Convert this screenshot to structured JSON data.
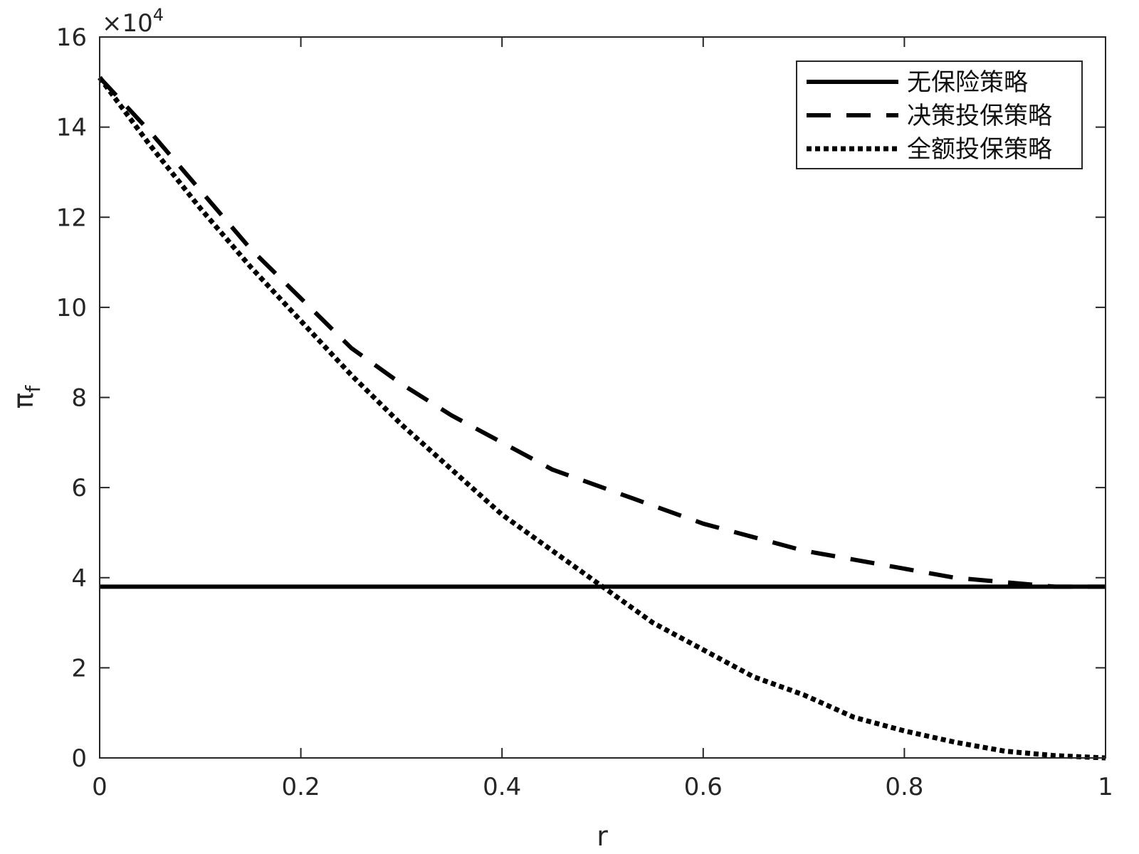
{
  "chart_data": {
    "type": "line",
    "title": "",
    "xlabel": "r",
    "ylabel": "π",
    "ylabel_subscript": "f",
    "y_multiplier_label": "×10",
    "y_multiplier_exponent": "4",
    "xlim": [
      0,
      1
    ],
    "ylim": [
      0,
      16
    ],
    "x_ticks": [
      0,
      0.2,
      0.4,
      0.6,
      0.8,
      1
    ],
    "x_tick_labels": [
      "0",
      "0.2",
      "0.4",
      "0.6",
      "0.8",
      "1"
    ],
    "y_ticks": [
      0,
      2,
      4,
      6,
      8,
      10,
      12,
      14,
      16
    ],
    "y_tick_labels": [
      "0",
      "2",
      "4",
      "6",
      "8",
      "10",
      "12",
      "14",
      "16"
    ],
    "grid": false,
    "legend_position": "top-right",
    "colors": {
      "line": "#000000",
      "axis": "#262626"
    },
    "series": [
      {
        "name": "无保险策略",
        "style": "solid",
        "x": [
          0,
          0.1,
          0.2,
          0.3,
          0.4,
          0.5,
          0.6,
          0.7,
          0.8,
          0.9,
          1.0
        ],
        "y": [
          3.8,
          3.8,
          3.8,
          3.8,
          3.8,
          3.8,
          3.8,
          3.8,
          3.8,
          3.8,
          3.8
        ]
      },
      {
        "name": "决策投保策略",
        "style": "dashed",
        "x": [
          0,
          0.05,
          0.1,
          0.15,
          0.2,
          0.25,
          0.3,
          0.35,
          0.4,
          0.45,
          0.5,
          0.55,
          0.6,
          0.65,
          0.7,
          0.75,
          0.8,
          0.85,
          0.9,
          0.95,
          1.0
        ],
        "y": [
          15.1,
          13.9,
          12.6,
          11.3,
          10.2,
          9.1,
          8.3,
          7.6,
          7.0,
          6.4,
          6.0,
          5.6,
          5.2,
          4.9,
          4.6,
          4.4,
          4.2,
          4.0,
          3.9,
          3.8,
          3.8
        ]
      },
      {
        "name": "全额投保策略",
        "style": "dotted",
        "x": [
          0,
          0.05,
          0.1,
          0.15,
          0.2,
          0.25,
          0.3,
          0.35,
          0.4,
          0.45,
          0.5,
          0.55,
          0.6,
          0.65,
          0.7,
          0.75,
          0.8,
          0.85,
          0.9,
          0.95,
          1.0
        ],
        "y": [
          15.1,
          13.6,
          12.2,
          10.9,
          9.7,
          8.5,
          7.4,
          6.4,
          5.4,
          4.6,
          3.8,
          3.0,
          2.4,
          1.8,
          1.4,
          0.9,
          0.6,
          0.35,
          0.15,
          0.05,
          0.0
        ]
      }
    ]
  }
}
